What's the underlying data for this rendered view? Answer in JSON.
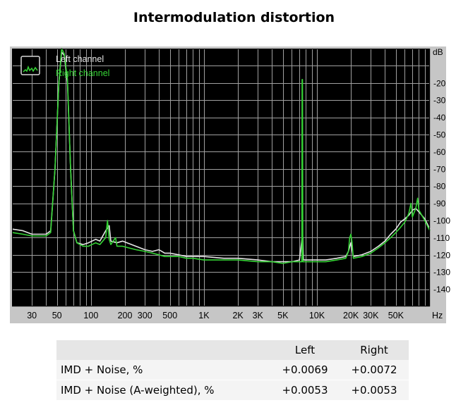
{
  "title": "Intermodulation distortion",
  "chart_data": {
    "type": "line",
    "x_scale": "log",
    "xlim": [
      20,
      100000
    ],
    "ylim": [
      -150,
      0
    ],
    "y_unit": "dB",
    "x_unit": "Hz",
    "grid": true,
    "legend_position": "top-left",
    "x_ticks": [
      {
        "v": 30,
        "label": "30"
      },
      {
        "v": 50,
        "label": "50"
      },
      {
        "v": 100,
        "label": "100"
      },
      {
        "v": 200,
        "label": "200"
      },
      {
        "v": 300,
        "label": "300"
      },
      {
        "v": 500,
        "label": "500"
      },
      {
        "v": 1000,
        "label": "1K"
      },
      {
        "v": 2000,
        "label": "2K"
      },
      {
        "v": 3000,
        "label": "3K"
      },
      {
        "v": 5000,
        "label": "5K"
      },
      {
        "v": 10000,
        "label": "10K"
      },
      {
        "v": 20000,
        "label": "20K"
      },
      {
        "v": 30000,
        "label": "30K"
      },
      {
        "v": 50000,
        "label": "50K"
      }
    ],
    "y_ticks": [
      {
        "v": -20,
        "label": "-20"
      },
      {
        "v": -30,
        "label": "-30"
      },
      {
        "v": -40,
        "label": "-40"
      },
      {
        "v": -50,
        "label": "-50"
      },
      {
        "v": -60,
        "label": "-60"
      },
      {
        "v": -70,
        "label": "-70"
      },
      {
        "v": -80,
        "label": "-80"
      },
      {
        "v": -90,
        "label": "-90"
      },
      {
        "v": -100,
        "label": "-100"
      },
      {
        "v": -110,
        "label": "-110"
      },
      {
        "v": -120,
        "label": "-120"
      },
      {
        "v": -130,
        "label": "-130"
      },
      {
        "v": -140,
        "label": "-140"
      }
    ],
    "series": [
      {
        "name": "Left channel",
        "color": "#e6e6e6",
        "points": [
          [
            20,
            -105
          ],
          [
            25,
            -106
          ],
          [
            30,
            -108
          ],
          [
            40,
            -108
          ],
          [
            44,
            -106
          ],
          [
            48,
            -70
          ],
          [
            52,
            -20
          ],
          [
            55,
            -2
          ],
          [
            58,
            -4
          ],
          [
            62,
            -20
          ],
          [
            66,
            -70
          ],
          [
            70,
            -106
          ],
          [
            75,
            -113
          ],
          [
            85,
            -114
          ],
          [
            95,
            -113
          ],
          [
            110,
            -111
          ],
          [
            120,
            -112
          ],
          [
            135,
            -106
          ],
          [
            145,
            -103
          ],
          [
            150,
            -112
          ],
          [
            170,
            -113
          ],
          [
            190,
            -112
          ],
          [
            250,
            -115
          ],
          [
            300,
            -117
          ],
          [
            350,
            -118
          ],
          [
            400,
            -117
          ],
          [
            450,
            -119
          ],
          [
            500,
            -119
          ],
          [
            600,
            -120
          ],
          [
            700,
            -121
          ],
          [
            800,
            -121
          ],
          [
            1000,
            -121
          ],
          [
            1500,
            -122
          ],
          [
            2000,
            -122
          ],
          [
            3000,
            -123
          ],
          [
            4000,
            -124
          ],
          [
            5000,
            -124
          ],
          [
            6000,
            -124
          ],
          [
            7000,
            -123
          ],
          [
            7400,
            -110
          ],
          [
            7500,
            -110
          ],
          [
            7600,
            -123
          ],
          [
            9000,
            -123
          ],
          [
            12000,
            -123
          ],
          [
            15000,
            -122
          ],
          [
            18000,
            -121
          ],
          [
            19000,
            -118
          ],
          [
            20000,
            -113
          ],
          [
            21000,
            -121
          ],
          [
            25000,
            -120
          ],
          [
            30000,
            -118
          ],
          [
            35000,
            -115
          ],
          [
            40000,
            -112
          ],
          [
            45000,
            -108
          ],
          [
            50000,
            -105
          ],
          [
            55000,
            -101
          ],
          [
            60000,
            -99
          ],
          [
            65000,
            -97
          ],
          [
            70000,
            -94
          ],
          [
            75000,
            -93
          ],
          [
            80000,
            -95
          ],
          [
            90000,
            -99
          ],
          [
            100000,
            -105
          ]
        ]
      },
      {
        "name": "Right channel",
        "color": "#35d435",
        "points": [
          [
            20,
            -107
          ],
          [
            25,
            -108
          ],
          [
            30,
            -109
          ],
          [
            40,
            -109
          ],
          [
            44,
            -107
          ],
          [
            48,
            -70
          ],
          [
            52,
            -20
          ],
          [
            55,
            0
          ],
          [
            58,
            -3
          ],
          [
            62,
            -18
          ],
          [
            66,
            -70
          ],
          [
            70,
            -106
          ],
          [
            75,
            -113
          ],
          [
            85,
            -115
          ],
          [
            95,
            -115
          ],
          [
            110,
            -113
          ],
          [
            120,
            -114
          ],
          [
            135,
            -110
          ],
          [
            140,
            -100
          ],
          [
            145,
            -111
          ],
          [
            150,
            -114
          ],
          [
            165,
            -110
          ],
          [
            170,
            -115
          ],
          [
            190,
            -115
          ],
          [
            250,
            -117
          ],
          [
            300,
            -118
          ],
          [
            350,
            -119
          ],
          [
            400,
            -120
          ],
          [
            450,
            -121
          ],
          [
            500,
            -121
          ],
          [
            600,
            -121
          ],
          [
            700,
            -122
          ],
          [
            800,
            -122
          ],
          [
            1000,
            -123
          ],
          [
            1500,
            -123
          ],
          [
            2000,
            -123
          ],
          [
            3000,
            -124
          ],
          [
            4000,
            -124
          ],
          [
            5000,
            -125
          ],
          [
            6000,
            -124
          ],
          [
            7000,
            -124
          ],
          [
            7350,
            -124
          ],
          [
            7400,
            -18
          ],
          [
            7450,
            -18
          ],
          [
            7500,
            -124
          ],
          [
            9000,
            -124
          ],
          [
            12000,
            -124
          ],
          [
            15000,
            -123
          ],
          [
            18000,
            -122
          ],
          [
            19000,
            -118
          ],
          [
            19500,
            -110
          ],
          [
            20000,
            -108
          ],
          [
            20500,
            -113
          ],
          [
            21000,
            -122
          ],
          [
            25000,
            -121
          ],
          [
            30000,
            -119
          ],
          [
            35000,
            -116
          ],
          [
            40000,
            -113
          ],
          [
            45000,
            -110
          ],
          [
            50000,
            -107
          ],
          [
            55000,
            -104
          ],
          [
            60000,
            -101
          ],
          [
            65000,
            -96
          ],
          [
            68000,
            -90
          ],
          [
            70000,
            -98
          ],
          [
            75000,
            -93
          ],
          [
            78000,
            -87
          ],
          [
            80000,
            -94
          ],
          [
            90000,
            -100
          ],
          [
            100000,
            -106
          ]
        ]
      }
    ]
  },
  "results_table": {
    "headers": [
      "",
      "Left",
      "Right"
    ],
    "rows": [
      {
        "label": "IMD + Noise, %",
        "left": "+0.0069",
        "right": "+0.0072"
      },
      {
        "label": "IMD + Noise (A-weighted), %",
        "left": "+0.0053",
        "right": "+0.0053"
      }
    ]
  }
}
